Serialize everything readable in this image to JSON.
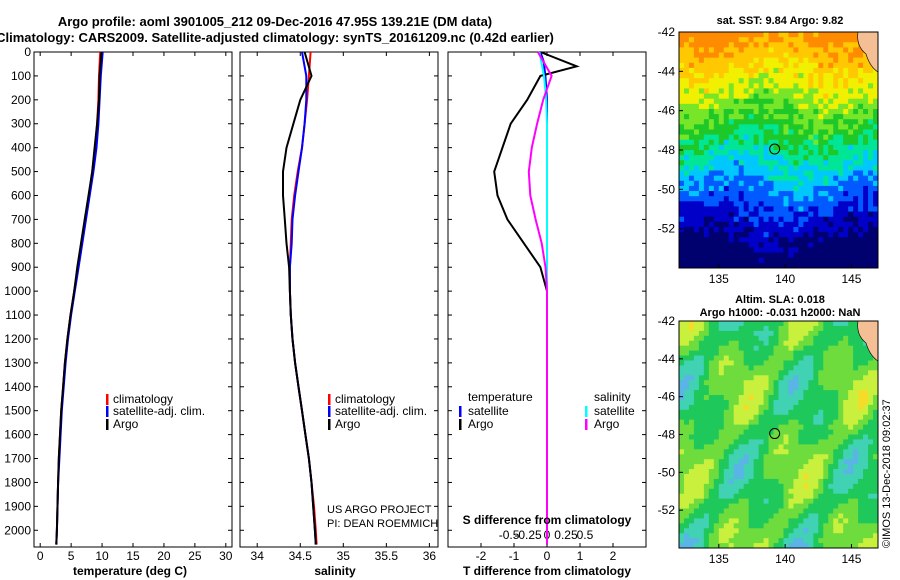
{
  "header": {
    "title_line1": "Argo profile: aoml 3901005_212 09-Dec-2016 47.95S 139.21E (DM data)",
    "title_line2": "Climatology: CARS2009. Satellite-adjusted climatology: synTS_20161209.nc (0.42d earlier)"
  },
  "colors": {
    "climatology": "#ff0000",
    "satellite": "#0000ff",
    "argo": "#000000",
    "t_satellite": "#0000ff",
    "t_argo": "#000000",
    "s_satellite": "#00ffff",
    "s_argo": "#ff00ff"
  },
  "chart_data": [
    {
      "type": "line",
      "name": "temperature-profile",
      "xlabel": "temperature (deg C)",
      "xlim": [
        -1,
        31
      ],
      "xticks": [
        0,
        5,
        10,
        15,
        20,
        25,
        30
      ],
      "ylim": [
        0,
        2070
      ],
      "yticks": [
        0,
        100,
        200,
        300,
        400,
        500,
        600,
        700,
        800,
        900,
        1000,
        1100,
        1200,
        1300,
        1400,
        1500,
        1600,
        1700,
        1800,
        1900,
        2000
      ],
      "legend": [
        "climatology",
        "satellite-adj. clim.",
        "Argo"
      ],
      "legend_position": "lower-right",
      "series": [
        {
          "name": "climatology",
          "color": "#ff0000",
          "x": [
            9.7,
            9.5,
            9.4,
            9.2,
            8.9,
            8.4,
            7.9,
            7.3,
            6.7,
            6.1,
            5.5,
            4.9,
            4.4,
            4.0,
            3.7,
            3.4,
            3.2,
            3.0,
            2.9,
            2.8,
            2.7,
            2.6
          ],
          "y": [
            0,
            100,
            200,
            300,
            400,
            500,
            600,
            700,
            800,
            900,
            1000,
            1100,
            1200,
            1300,
            1400,
            1500,
            1600,
            1700,
            1800,
            1900,
            2000,
            2060
          ]
        },
        {
          "name": "satellite-adj. clim.",
          "color": "#0000ff",
          "x": [
            10.1,
            9.8,
            9.6,
            9.4,
            9.1,
            8.6,
            8.0,
            7.4,
            6.8,
            6.2,
            5.6,
            5.0,
            4.5,
            4.1,
            3.8,
            3.5,
            3.3,
            3.1,
            2.9,
            2.8,
            2.7,
            2.6
          ],
          "y": [
            0,
            100,
            200,
            300,
            400,
            500,
            600,
            700,
            800,
            900,
            1000,
            1100,
            1200,
            1300,
            1400,
            1500,
            1600,
            1700,
            1800,
            1900,
            2000,
            2060
          ]
        },
        {
          "name": "Argo",
          "color": "#000000",
          "x": [
            9.9,
            9.6,
            9.5,
            9.2,
            8.8,
            8.4,
            7.8,
            7.2,
            6.6,
            6.0,
            5.5,
            4.9,
            4.4,
            4.0,
            3.7,
            3.4,
            3.2,
            3.0,
            2.9,
            2.8,
            2.7,
            2.6
          ],
          "y": [
            0,
            100,
            200,
            300,
            400,
            500,
            600,
            700,
            800,
            900,
            1000,
            1100,
            1200,
            1300,
            1400,
            1500,
            1600,
            1700,
            1800,
            1900,
            2000,
            2060
          ]
        }
      ]
    },
    {
      "type": "line",
      "name": "salinity-profile",
      "xlabel": "salinity",
      "xlim": [
        33.8,
        36.1
      ],
      "xticks": [
        34,
        34.5,
        35,
        35.5,
        36
      ],
      "xticklabels": [
        "34",
        "34.5",
        "35",
        "35.5",
        "36"
      ],
      "ylim": [
        0,
        2070
      ],
      "legend": [
        "climatology",
        "satellite-adj. clim.",
        "Argo"
      ],
      "legend_position": "lower-right",
      "series": [
        {
          "name": "climatology",
          "color": "#ff0000",
          "x": [
            34.62,
            34.6,
            34.58,
            34.55,
            34.52,
            34.47,
            34.43,
            34.4,
            34.39,
            34.38,
            34.38,
            34.39,
            34.41,
            34.44,
            34.48,
            34.52,
            34.56,
            34.6,
            34.63,
            34.66,
            34.68,
            34.69
          ],
          "y": [
            0,
            100,
            200,
            300,
            400,
            500,
            600,
            700,
            800,
            900,
            1000,
            1100,
            1200,
            1300,
            1400,
            1500,
            1600,
            1700,
            1800,
            1900,
            2000,
            2060
          ]
        },
        {
          "name": "satellite-adj. clim.",
          "color": "#0000ff",
          "x": [
            34.52,
            34.57,
            34.57,
            34.55,
            34.52,
            34.48,
            34.44,
            34.41,
            34.4,
            34.38,
            34.38,
            34.39,
            34.41,
            34.44,
            34.48,
            34.52,
            34.56,
            34.6,
            34.63,
            34.65,
            34.67,
            34.68
          ],
          "y": [
            0,
            100,
            200,
            300,
            400,
            500,
            600,
            700,
            800,
            900,
            1000,
            1100,
            1200,
            1300,
            1400,
            1500,
            1600,
            1700,
            1800,
            1900,
            2000,
            2060
          ]
        },
        {
          "name": "Argo",
          "color": "#000000",
          "x": [
            34.55,
            34.63,
            34.5,
            34.42,
            34.34,
            34.3,
            34.3,
            34.32,
            34.34,
            34.37,
            34.38,
            34.39,
            34.41,
            34.44,
            34.48,
            34.52,
            34.56,
            34.6,
            34.63,
            34.65,
            34.67,
            34.68
          ],
          "y": [
            0,
            100,
            200,
            300,
            400,
            500,
            600,
            700,
            800,
            900,
            1000,
            1100,
            1200,
            1300,
            1400,
            1500,
            1600,
            1700,
            1800,
            1900,
            2000,
            2060
          ]
        }
      ],
      "annotations": [
        "US ARGO PROJECT",
        "PI: DEAN ROEMMICH"
      ]
    },
    {
      "type": "line",
      "name": "difference-profile",
      "xlabel": "T difference from climatology",
      "xlim": [
        -3,
        3
      ],
      "xticks": [
        -2,
        -1,
        0,
        1,
        2
      ],
      "ylim": [
        0,
        2070
      ],
      "secondary_xlabel": "S difference from climatology",
      "secondary_xticks": [
        -0.5,
        -0.25,
        0,
        0.25,
        0.5
      ],
      "secondary_xticklabels": [
        "-0.5",
        "-0.25",
        "0",
        "0.25",
        "0.5"
      ],
      "legend_groups": {
        "temperature": [
          "satellite",
          "Argo"
        ],
        "salinity": [
          "satellite",
          "Argo"
        ]
      },
      "legend_position": "lower-center",
      "series": [
        {
          "name": "satellite",
          "group": "temperature",
          "color": "#0000ff",
          "x": [
            -0.2,
            -0.1,
            -0.05,
            0,
            0,
            0,
            0,
            0,
            0,
            0,
            0,
            0,
            0,
            0,
            0,
            0,
            0,
            0,
            0,
            0,
            0,
            0
          ],
          "y": [
            0,
            40,
            100,
            200,
            300,
            400,
            500,
            600,
            700,
            800,
            900,
            1000,
            1100,
            1200,
            1300,
            1400,
            1500,
            1600,
            1700,
            1800,
            1900,
            2060
          ]
        },
        {
          "name": "Argo",
          "group": "temperature",
          "color": "#000000",
          "x": [
            -0.2,
            0.9,
            -0.2,
            -0.6,
            -1.1,
            -1.6,
            -1.5,
            -1.2,
            -0.7,
            -0.2,
            0,
            0,
            0,
            0,
            0,
            0,
            0,
            0,
            0,
            0,
            0,
            0
          ],
          "y": [
            0,
            60,
            100,
            200,
            300,
            500,
            600,
            700,
            800,
            900,
            1000,
            1100,
            1200,
            1300,
            1400,
            1500,
            1600,
            1700,
            1800,
            1900,
            2000,
            2060
          ]
        },
        {
          "name": "satellite",
          "group": "salinity",
          "color": "#00ffff",
          "x": [
            -0.1,
            -0.04,
            -0.01,
            0,
            0,
            0,
            0,
            0,
            0,
            0,
            0,
            0,
            0,
            0,
            0,
            0,
            0,
            0,
            0,
            0,
            0,
            0
          ],
          "y": [
            0,
            100,
            200,
            300,
            400,
            500,
            600,
            700,
            800,
            900,
            1000,
            1100,
            1200,
            1300,
            1400,
            1500,
            1600,
            1700,
            1800,
            1900,
            2000,
            2060
          ]
        },
        {
          "name": "Argo",
          "group": "salinity",
          "color": "#ff00ff",
          "x": [
            -0.12,
            0.06,
            -0.05,
            -0.13,
            -0.2,
            -0.24,
            -0.22,
            -0.15,
            -0.07,
            -0.02,
            0,
            0,
            0,
            0,
            0,
            0,
            0,
            0,
            0,
            0,
            0,
            0
          ],
          "y": [
            0,
            100,
            200,
            300,
            400,
            500,
            600,
            700,
            800,
            900,
            1000,
            1100,
            1200,
            1300,
            1400,
            1500,
            1600,
            1700,
            1800,
            1900,
            2000,
            2060
          ]
        }
      ]
    },
    {
      "type": "heatmap",
      "name": "sst-map",
      "title": "sat. SST: 9.84 Argo: 9.82",
      "xlim": [
        132,
        147
      ],
      "ylim": [
        -54,
        -42
      ],
      "xticks": [
        135,
        140,
        145
      ],
      "yticks": [
        -42,
        -44,
        -46,
        -48,
        -50,
        -52
      ],
      "argo_position": [
        139.21,
        -47.95
      ],
      "colormap": [
        "#00006e",
        "#0000c8",
        "#005aff",
        "#00c8ff",
        "#00e696",
        "#1ec828",
        "#78e628",
        "#f0f000",
        "#ffc800",
        "#ff8c00"
      ]
    },
    {
      "type": "heatmap",
      "name": "sla-map",
      "title": "Altim. SLA: 0.018",
      "subtitle": "Argo h1000: -0.031 h2000: NaN",
      "xlim": [
        132,
        147
      ],
      "ylim": [
        -54,
        -42
      ],
      "xticks": [
        135,
        140,
        145
      ],
      "yticks": [
        -42,
        -44,
        -46,
        -48,
        -50,
        -52
      ],
      "argo_position": [
        139.21,
        -47.95
      ],
      "colormap": [
        "#5ab4e6",
        "#41d2b4",
        "#1ec85a",
        "#6edc3c",
        "#c8f03c",
        "#f5dc28",
        "#f5aa14"
      ]
    }
  ],
  "credit": "©IMOS 13-Dec-2018 09:02:37"
}
